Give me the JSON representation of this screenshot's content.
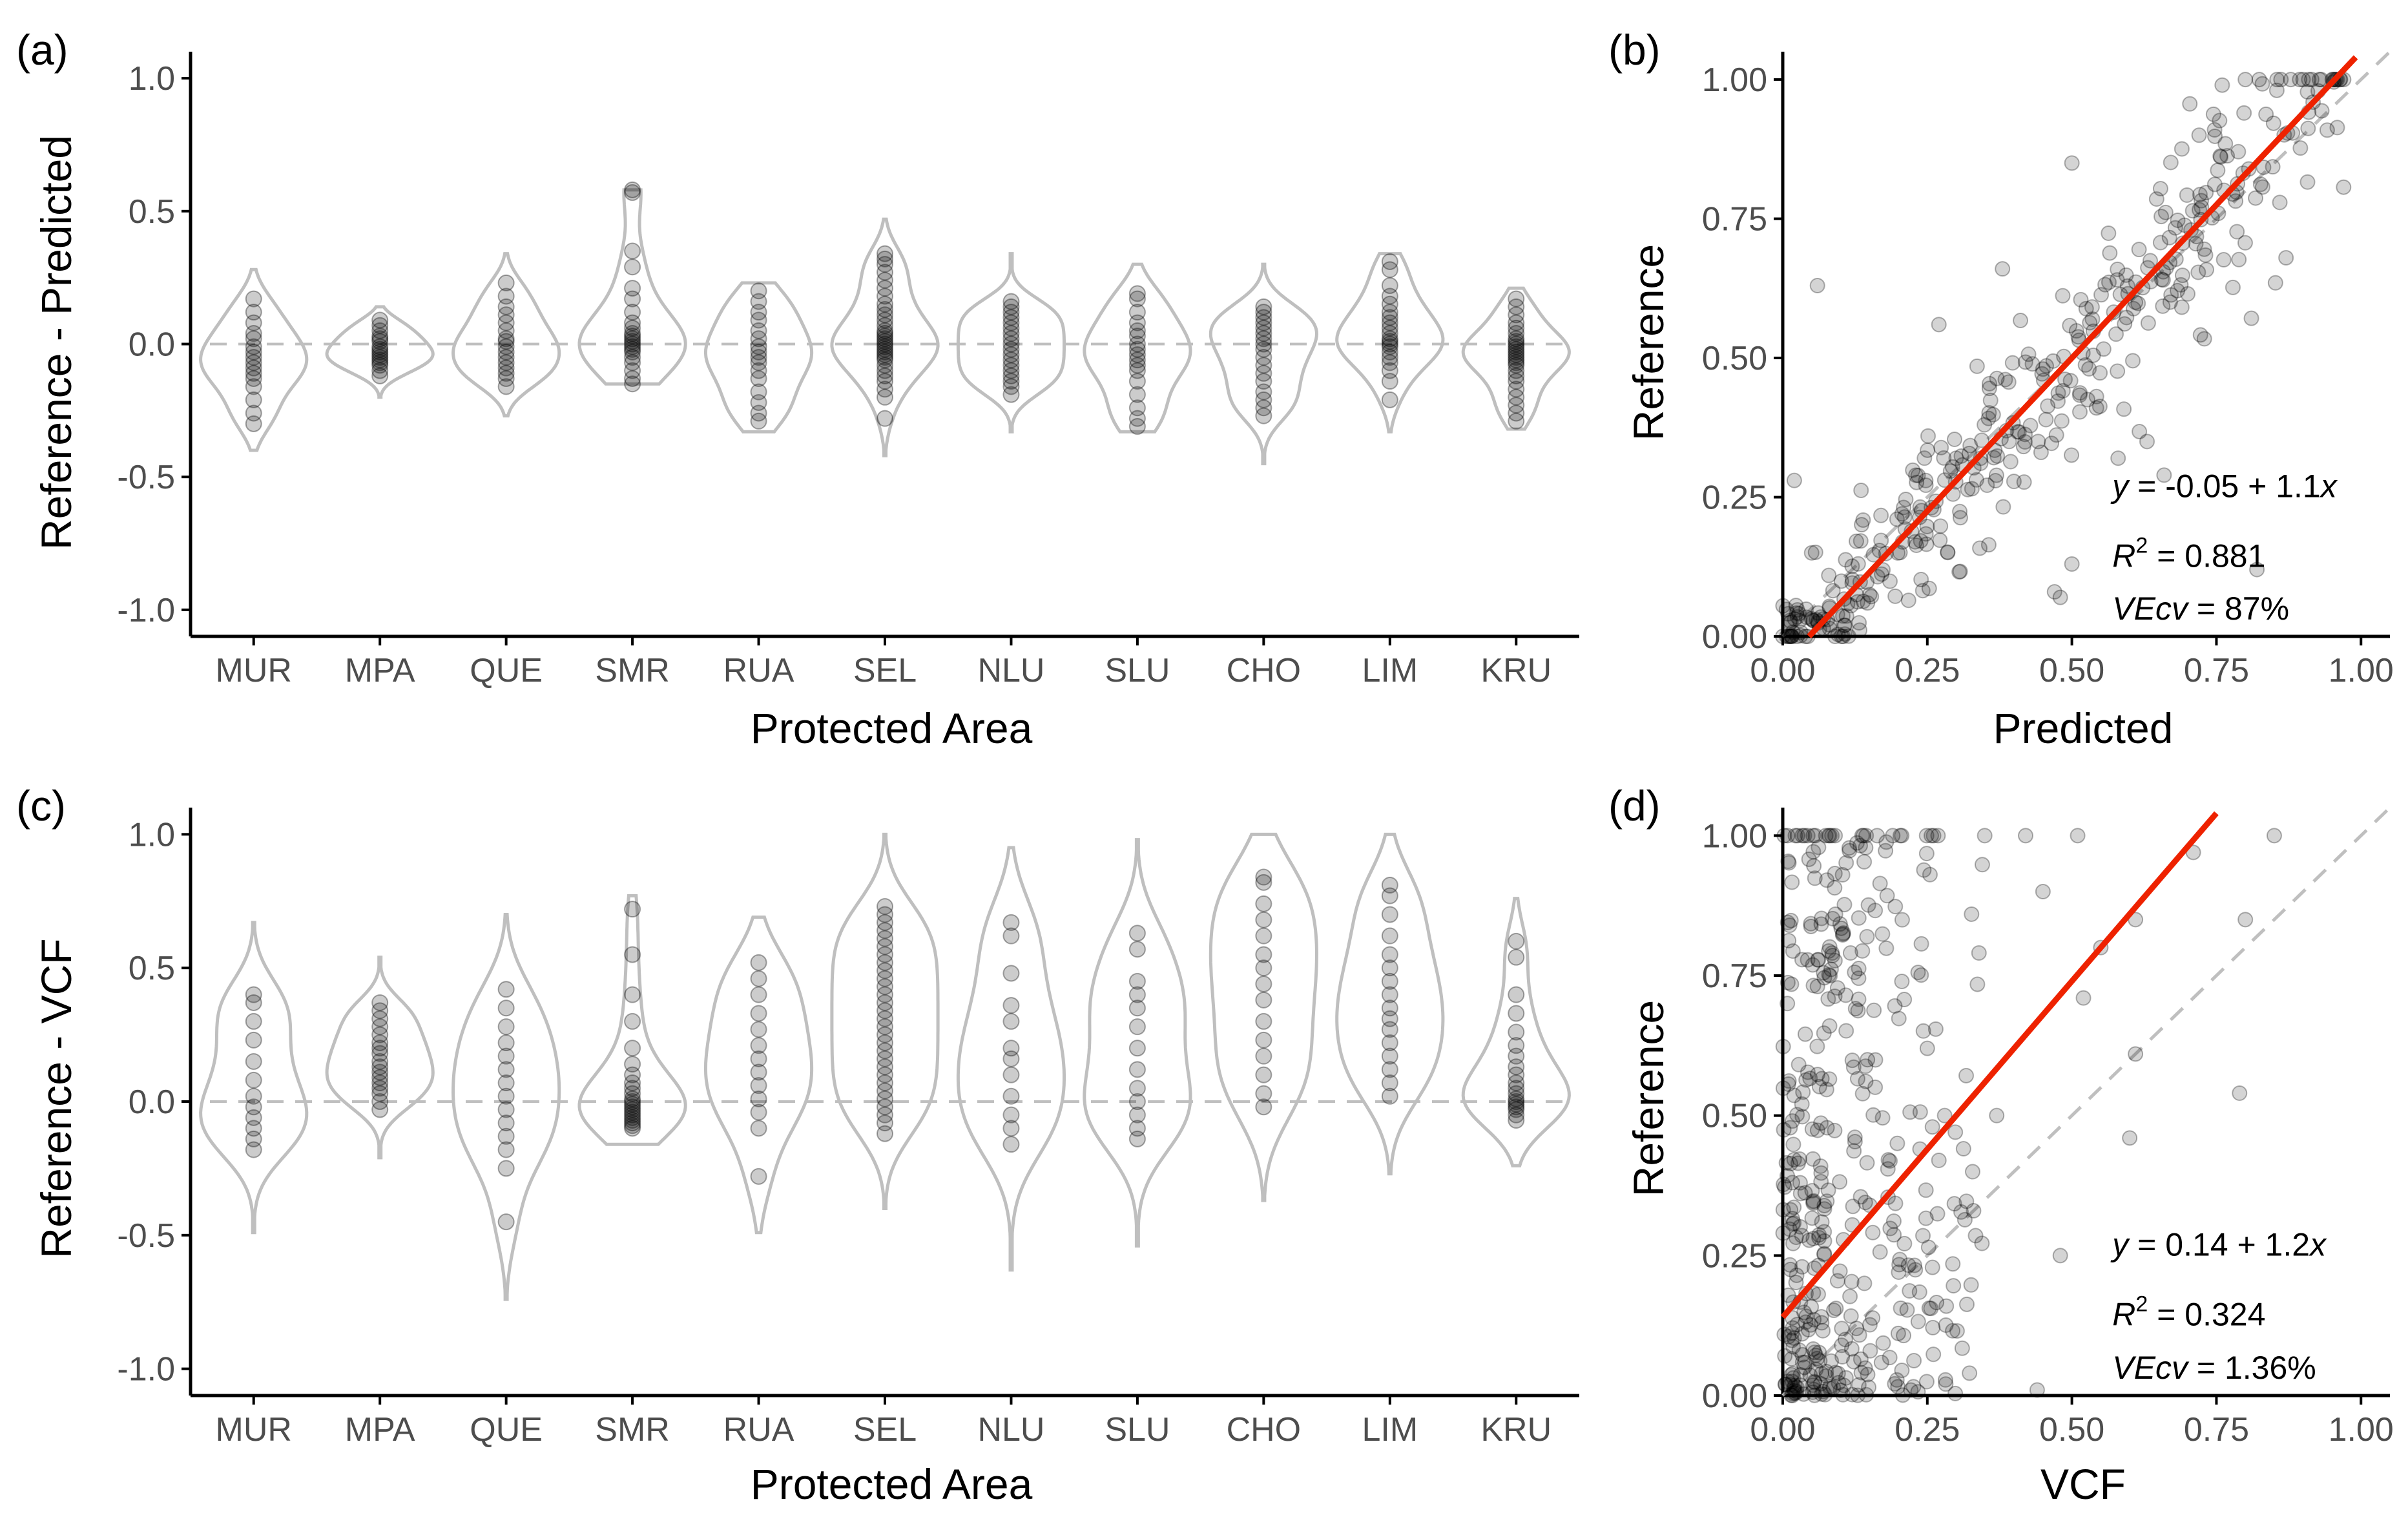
{
  "colors": {
    "violin": "#bfbfbf",
    "point": "#000000",
    "fit": "#ee2200",
    "zero_line": "#bfbfbf",
    "axis": "#000000",
    "tick_text": "#4d4d4d"
  },
  "chart_data": [
    {
      "panel": "(a)",
      "type": "violin",
      "xlabel": "Protected Area",
      "ylabel": "Reference - Predicted",
      "ylim": [
        -1.1,
        1.1
      ],
      "yticks": [
        1.0,
        0.5,
        0.0,
        -0.5,
        -1.0
      ],
      "ytick_labels": [
        "1.0",
        "0.5",
        "0.0",
        "-0.5",
        "-1.0"
      ],
      "reference_line": 0,
      "categories": [
        "MUR",
        "MPA",
        "QUE",
        "SMR",
        "RUA",
        "SEL",
        "NLU",
        "SLU",
        "CHO",
        "LIM",
        "KRU"
      ],
      "groups": [
        {
          "name": "MUR",
          "min": -0.4,
          "max": 0.28,
          "points": [
            0.17,
            0.12,
            0.08,
            0.04,
            0.02,
            -0.01,
            -0.03,
            -0.05,
            -0.07,
            -0.09,
            -0.11,
            -0.13,
            -0.16,
            -0.21,
            -0.26,
            -0.3
          ]
        },
        {
          "name": "MPA",
          "min": -0.2,
          "max": 0.14,
          "points": [
            0.09,
            0.07,
            0.05,
            0.03,
            0.02,
            0.01,
            -0.01,
            -0.02,
            -0.03,
            -0.04,
            -0.05,
            -0.06,
            -0.07,
            -0.08,
            -0.1,
            -0.12
          ]
        },
        {
          "name": "QUE",
          "min": -0.27,
          "max": 0.34,
          "points": [
            0.23,
            0.18,
            0.14,
            0.11,
            0.08,
            0.05,
            0.02,
            0.01,
            -0.01,
            -0.03,
            -0.05,
            -0.07,
            -0.09,
            -0.11,
            -0.13,
            -0.16
          ]
        },
        {
          "name": "SMR",
          "min": -0.15,
          "max": 0.58,
          "points": [
            0.58,
            0.57,
            0.35,
            0.29,
            0.21,
            0.17,
            0.12,
            0.08,
            0.06,
            0.04,
            0.03,
            0.02,
            0.01,
            0.0,
            -0.01,
            -0.02,
            -0.03,
            -0.05,
            -0.07,
            -0.1,
            -0.13,
            -0.15
          ]
        },
        {
          "name": "RUA",
          "min": -0.33,
          "max": 0.23,
          "points": [
            0.2,
            0.16,
            0.12,
            0.09,
            0.05,
            0.02,
            -0.01,
            -0.03,
            -0.05,
            -0.07,
            -0.1,
            -0.13,
            -0.18,
            -0.22,
            -0.26,
            -0.29
          ]
        },
        {
          "name": "SEL",
          "min": -0.42,
          "max": 0.47,
          "points": [
            0.34,
            0.32,
            0.3,
            0.27,
            0.24,
            0.21,
            0.18,
            0.15,
            0.13,
            0.11,
            0.09,
            0.07,
            0.05,
            0.04,
            0.03,
            0.02,
            0.01,
            0.0,
            -0.01,
            -0.02,
            -0.03,
            -0.04,
            -0.05,
            -0.06,
            -0.08,
            -0.1,
            -0.12,
            -0.14,
            -0.17,
            -0.2,
            -0.28
          ]
        },
        {
          "name": "NLU",
          "min": -0.33,
          "max": 0.34,
          "points": [
            0.16,
            0.14,
            0.12,
            0.1,
            0.08,
            0.06,
            0.04,
            0.02,
            0.0,
            -0.02,
            -0.04,
            -0.06,
            -0.08,
            -0.1,
            -0.12,
            -0.14,
            -0.16,
            -0.19
          ]
        },
        {
          "name": "SLU",
          "min": -0.33,
          "max": 0.3,
          "points": [
            0.19,
            0.17,
            0.12,
            0.08,
            0.05,
            0.03,
            0.0,
            -0.02,
            -0.04,
            -0.06,
            -0.08,
            -0.1,
            -0.14,
            -0.19,
            -0.24,
            -0.28,
            -0.31
          ]
        },
        {
          "name": "CHO",
          "min": -0.45,
          "max": 0.3,
          "points": [
            0.14,
            0.12,
            0.1,
            0.08,
            0.06,
            0.04,
            0.02,
            0.0,
            -0.02,
            -0.05,
            -0.08,
            -0.11,
            -0.14,
            -0.18,
            -0.21,
            -0.24,
            -0.27
          ]
        },
        {
          "name": "LIM",
          "min": -0.33,
          "max": 0.34,
          "points": [
            0.31,
            0.28,
            0.22,
            0.18,
            0.15,
            0.12,
            0.1,
            0.08,
            0.06,
            0.04,
            0.02,
            0.01,
            0.0,
            -0.01,
            -0.03,
            -0.05,
            -0.07,
            -0.1,
            -0.14,
            -0.21
          ]
        },
        {
          "name": "KRU",
          "min": -0.32,
          "max": 0.21,
          "points": [
            0.17,
            0.14,
            0.11,
            0.08,
            0.06,
            0.04,
            0.02,
            0.01,
            0.0,
            -0.01,
            -0.02,
            -0.03,
            -0.04,
            -0.05,
            -0.06,
            -0.07,
            -0.08,
            -0.1,
            -0.12,
            -0.14,
            -0.17,
            -0.2,
            -0.23,
            -0.26,
            -0.29
          ]
        }
      ]
    },
    {
      "panel": "(b)",
      "type": "scatter",
      "xlabel": "Predicted",
      "ylabel": "Reference",
      "xlim": [
        0,
        1.05
      ],
      "ylim": [
        0,
        1.05
      ],
      "xticks": [
        0.0,
        0.25,
        0.5,
        0.75,
        1.0
      ],
      "xtick_labels": [
        "0.00",
        "0.25",
        "0.50",
        "0.75",
        "1.00"
      ],
      "yticks": [
        0.0,
        0.25,
        0.5,
        0.75,
        1.0
      ],
      "ytick_labels": [
        "0.00",
        "0.25",
        "0.50",
        "0.75",
        "1.00"
      ],
      "fit": {
        "intercept": -0.05,
        "slope": 1.1
      },
      "annotation": {
        "line1": "-0.05 + 1.1",
        "r2": "0.881",
        "vecv": "87%"
      },
      "point_cloud": {
        "n": 380,
        "x_range": [
          0,
          0.97
        ],
        "residual_sd": 0.09
      },
      "points": [
        [
          0.06,
          0.63
        ],
        [
          0.02,
          0.28
        ],
        [
          0.5,
          0.85
        ],
        [
          0.45,
          0.48
        ],
        [
          0.58,
          0.32
        ],
        [
          0.63,
          0.35
        ],
        [
          0.82,
          0.12
        ],
        [
          0.05,
          0.15
        ],
        [
          0.47,
          0.08
        ],
        [
          0.48,
          0.07
        ],
        [
          0.5,
          0.13
        ],
        [
          0.76,
          0.99
        ],
        [
          0.8,
          1.0
        ],
        [
          0.97,
          1.0
        ],
        [
          0.72,
          0.9
        ],
        [
          0.61,
          0.6
        ],
        [
          0.27,
          0.56
        ],
        [
          0.38,
          0.66
        ]
      ]
    },
    {
      "panel": "(c)",
      "type": "violin",
      "xlabel": "Protected Area",
      "ylabel": "Reference - VCF",
      "ylim": [
        -1.1,
        1.1
      ],
      "yticks": [
        1.0,
        0.5,
        0.0,
        -0.5,
        -1.0
      ],
      "ytick_labels": [
        "1.0",
        "0.5",
        "0.0",
        "-0.5",
        "-1.0"
      ],
      "reference_line": 0,
      "categories": [
        "MUR",
        "MPA",
        "QUE",
        "SMR",
        "RUA",
        "SEL",
        "NLU",
        "SLU",
        "CHO",
        "LIM",
        "KRU"
      ],
      "groups": [
        {
          "name": "MUR",
          "min": -0.49,
          "max": 0.67,
          "points": [
            0.4,
            0.37,
            0.3,
            0.23,
            0.15,
            0.08,
            0.02,
            -0.02,
            -0.06,
            -0.1,
            -0.14,
            -0.18
          ]
        },
        {
          "name": "MPA",
          "min": -0.21,
          "max": 0.54,
          "points": [
            0.37,
            0.34,
            0.31,
            0.28,
            0.25,
            0.22,
            0.2,
            0.18,
            0.15,
            0.13,
            0.11,
            0.09,
            0.07,
            0.05,
            0.03,
            0.0,
            -0.03
          ]
        },
        {
          "name": "QUE",
          "min": -0.74,
          "max": 0.7,
          "points": [
            0.42,
            0.35,
            0.28,
            0.22,
            0.17,
            0.12,
            0.07,
            0.02,
            -0.03,
            -0.08,
            -0.13,
            -0.18,
            -0.25,
            -0.45
          ]
        },
        {
          "name": "SMR",
          "min": -0.16,
          "max": 0.77,
          "points": [
            0.72,
            0.55,
            0.4,
            0.3,
            0.2,
            0.14,
            0.1,
            0.07,
            0.05,
            0.03,
            0.01,
            0.0,
            -0.01,
            -0.02,
            -0.03,
            -0.04,
            -0.05,
            -0.06,
            -0.07,
            -0.08,
            -0.09,
            -0.1
          ]
        },
        {
          "name": "RUA",
          "min": -0.49,
          "max": 0.69,
          "points": [
            0.52,
            0.46,
            0.4,
            0.33,
            0.27,
            0.21,
            0.16,
            0.11,
            0.06,
            0.01,
            -0.04,
            -0.1,
            -0.28
          ]
        },
        {
          "name": "SEL",
          "min": -0.4,
          "max": 1.0,
          "points": [
            0.73,
            0.7,
            0.67,
            0.64,
            0.61,
            0.58,
            0.55,
            0.52,
            0.49,
            0.46,
            0.43,
            0.4,
            0.37,
            0.34,
            0.31,
            0.28,
            0.25,
            0.22,
            0.19,
            0.16,
            0.13,
            0.1,
            0.07,
            0.04,
            0.01,
            -0.02,
            -0.05,
            -0.08,
            -0.12
          ]
        },
        {
          "name": "NLU",
          "min": -0.63,
          "max": 0.95,
          "points": [
            0.67,
            0.62,
            0.48,
            0.36,
            0.3,
            0.2,
            0.16,
            0.1,
            0.02,
            -0.05,
            -0.1,
            -0.16
          ]
        },
        {
          "name": "SLU",
          "min": -0.54,
          "max": 0.98,
          "points": [
            0.63,
            0.57,
            0.45,
            0.4,
            0.35,
            0.28,
            0.2,
            0.12,
            0.05,
            0.0,
            -0.05,
            -0.1,
            -0.14
          ]
        },
        {
          "name": "CHO",
          "min": -0.37,
          "max": 1.0,
          "points": [
            0.84,
            0.82,
            0.74,
            0.68,
            0.62,
            0.55,
            0.5,
            0.44,
            0.38,
            0.3,
            0.23,
            0.17,
            0.1,
            0.03,
            -0.02
          ]
        },
        {
          "name": "LIM",
          "min": -0.27,
          "max": 1.0,
          "points": [
            0.81,
            0.77,
            0.7,
            0.62,
            0.55,
            0.5,
            0.45,
            0.4,
            0.35,
            0.31,
            0.27,
            0.22,
            0.17,
            0.12,
            0.07,
            0.02
          ]
        },
        {
          "name": "KRU",
          "min": -0.24,
          "max": 0.76,
          "points": [
            0.6,
            0.54,
            0.4,
            0.33,
            0.26,
            0.21,
            0.17,
            0.13,
            0.1,
            0.07,
            0.05,
            0.03,
            0.01,
            0.0,
            -0.01,
            -0.02,
            -0.03,
            -0.05,
            -0.07
          ]
        }
      ]
    },
    {
      "panel": "(d)",
      "type": "scatter",
      "xlabel": "VCF",
      "ylabel": "Reference",
      "xlim": [
        0,
        1.05
      ],
      "ylim": [
        0,
        1.05
      ],
      "xticks": [
        0.0,
        0.25,
        0.5,
        0.75,
        1.0
      ],
      "xtick_labels": [
        "0.00",
        "0.25",
        "0.50",
        "0.75",
        "1.00"
      ],
      "yticks": [
        0.0,
        0.25,
        0.5,
        0.75,
        1.0
      ],
      "ytick_labels": [
        "0.00",
        "0.25",
        "0.50",
        "0.75",
        "1.00"
      ],
      "fit": {
        "intercept": 0.14,
        "slope": 1.2
      },
      "annotation": {
        "line1": "0.14 + 1.2",
        "r2": "0.324",
        "vecv": "1.36%"
      },
      "point_cloud": {
        "n": 420,
        "x_range": [
          0,
          0.35
        ],
        "y_range": [
          0,
          1.0
        ]
      },
      "points": [
        [
          0.51,
          1.0
        ],
        [
          0.42,
          1.0
        ],
        [
          0.45,
          0.9
        ],
        [
          0.61,
          0.85
        ],
        [
          0.71,
          0.97
        ],
        [
          0.85,
          1.0
        ],
        [
          0.79,
          0.54
        ],
        [
          0.61,
          0.61
        ],
        [
          0.55,
          0.8
        ],
        [
          0.52,
          0.71
        ],
        [
          0.6,
          0.46
        ],
        [
          0.37,
          0.5
        ],
        [
          0.48,
          0.25
        ],
        [
          0.44,
          0.01
        ],
        [
          0.28,
          0.5
        ],
        [
          0.27,
          0.42
        ],
        [
          0.25,
          0.62
        ],
        [
          0.8,
          0.85
        ],
        [
          0.33,
          0.33
        ]
      ]
    }
  ],
  "text": {
    "y_eq": "y",
    "r2_sym": "R",
    "r2_sup": "2",
    "vecv_sym": "VEcv",
    "eq_sep": " = ",
    "x_var": "x"
  }
}
